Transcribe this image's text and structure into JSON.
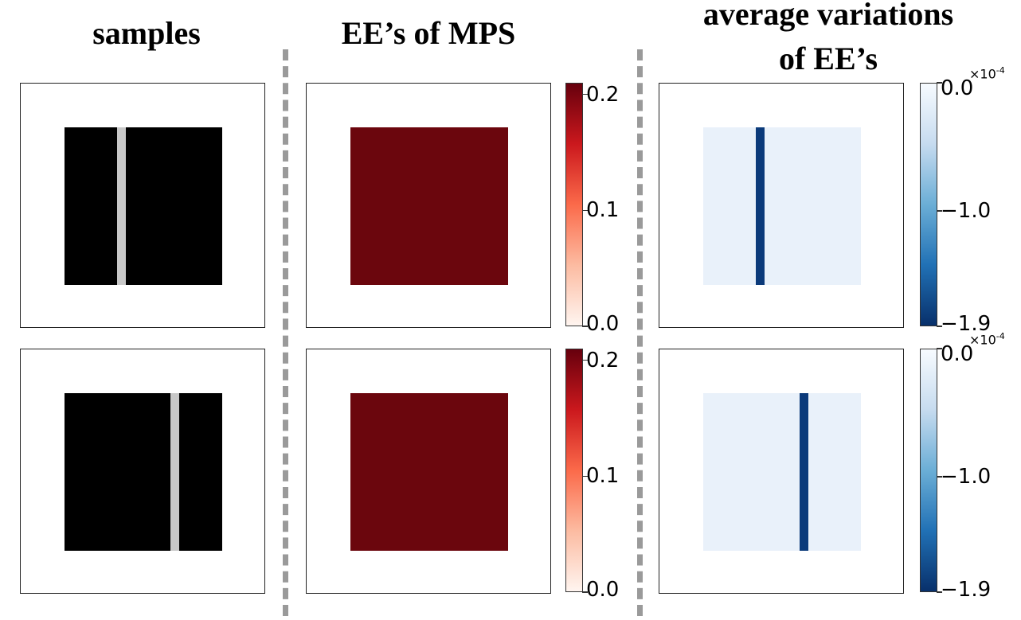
{
  "headers": {
    "col1": "samples",
    "col2": "EE’s of MPS",
    "col3_line1": "average variations",
    "col3_line2": "of EE’s"
  },
  "colors": {
    "sample_bg": "#000000",
    "sample_stripe": "#c8c8c8",
    "ee_fill": "#6b060d",
    "var_bg": "#e9f1fa",
    "var_stripe": "#0b3a7a",
    "divider": "#9a9a9a"
  },
  "chart_data": [
    {
      "type": "heatmap",
      "row": 1,
      "sample": {
        "stripe_column_fraction": 0.36
      },
      "entanglement_entropy": {
        "uniform_value": 0.21,
        "colorbar": {
          "min": 0.0,
          "max": 0.21,
          "ticks": [
            "0.0",
            "0.1",
            "0.2"
          ],
          "colormap": "Reds"
        }
      },
      "average_variation": {
        "stripe_column_fraction": 0.36,
        "stripe_value": -1.9,
        "background_value": -0.05,
        "colorbar": {
          "min": -1.9,
          "max": 0.0,
          "ticks": [
            "0.0",
            "−1.0",
            "−1.9"
          ],
          "multiplier_base": "×10",
          "multiplier_exp": "-4",
          "colormap": "Blues_r"
        }
      }
    },
    {
      "type": "heatmap",
      "row": 2,
      "sample": {
        "stripe_column_fraction": 0.7
      },
      "entanglement_entropy": {
        "uniform_value": 0.21,
        "colorbar": {
          "min": 0.0,
          "max": 0.21,
          "ticks": [
            "0.0",
            "0.1",
            "0.2"
          ],
          "colormap": "Reds"
        }
      },
      "average_variation": {
        "stripe_column_fraction": 0.64,
        "stripe_value": -1.9,
        "background_value": -0.05,
        "colorbar": {
          "min": -1.9,
          "max": 0.0,
          "ticks": [
            "0.0",
            "−1.0",
            "−1.9"
          ],
          "multiplier_base": "×10",
          "multiplier_exp": "-4",
          "colormap": "Blues_r"
        }
      }
    }
  ]
}
